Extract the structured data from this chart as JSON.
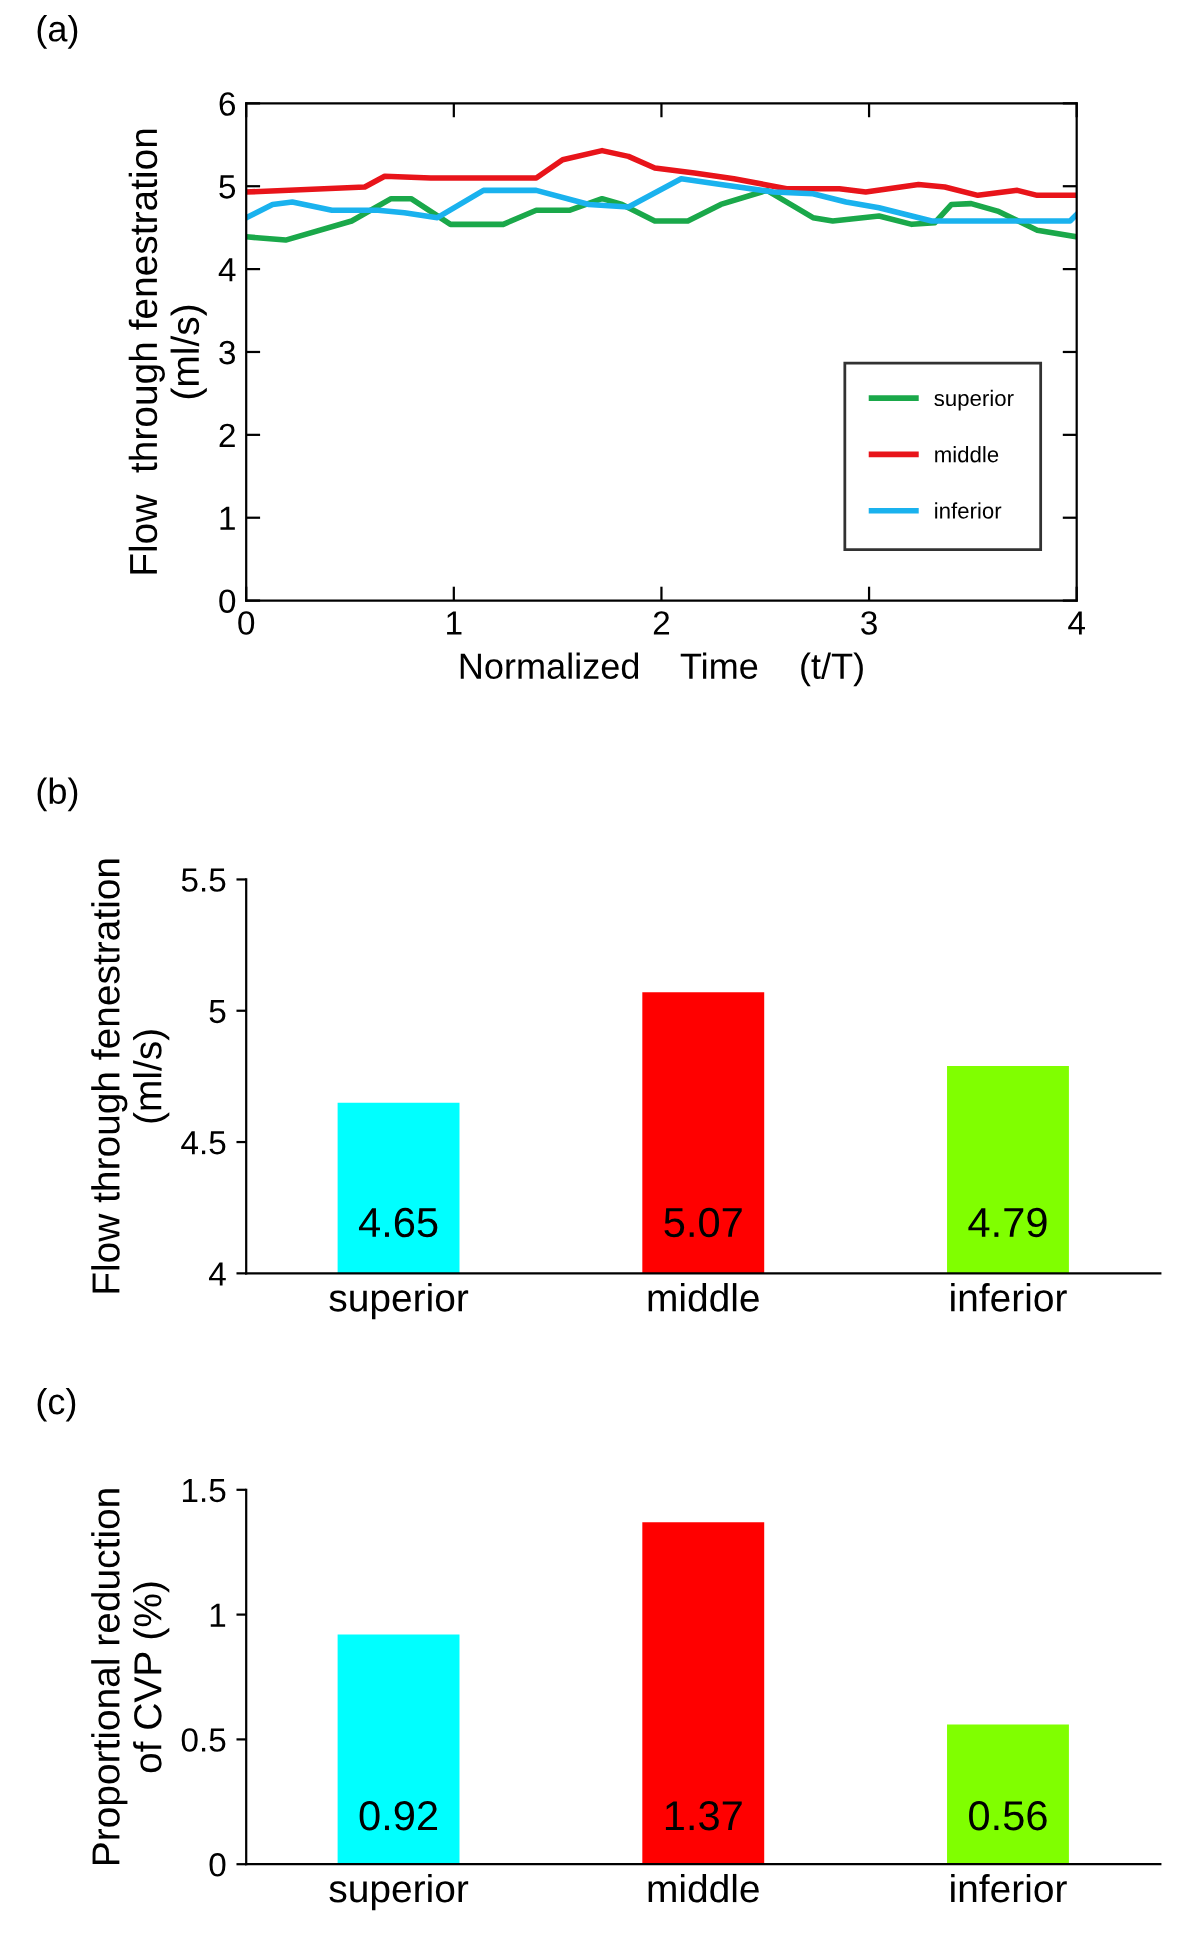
{
  "chart_data": [
    {
      "type": "line",
      "title": "(a)",
      "xlabel": "Normalized    Time    (t/T)",
      "ylabel": "Flow  through fenestration\n(ml/s)",
      "xlim": [
        0,
        4
      ],
      "xticks": [
        0,
        1,
        2,
        3,
        4
      ],
      "ylim": [
        0,
        6
      ],
      "yticks": [
        0,
        1,
        2,
        3,
        4,
        5,
        6
      ],
      "legend": "bottom right",
      "grid": false,
      "series": [
        {
          "name": "superior",
          "color": "#1aa84a",
          "x": [
            0,
            0.19,
            0.508,
            0.698,
            0.794,
            0.984,
            1.238,
            1.397,
            1.556,
            1.714,
            1.81,
            1.968,
            2.127,
            2.286,
            2.508,
            2.73,
            2.825,
            3.048,
            3.206,
            3.317,
            3.397,
            3.492,
            3.619,
            3.81,
            4
          ],
          "values": [
            4.39,
            4.35,
            4.58,
            4.85,
            4.85,
            4.54,
            4.54,
            4.71,
            4.71,
            4.85,
            4.78,
            4.58,
            4.58,
            4.78,
            4.95,
            4.62,
            4.58,
            4.64,
            4.54,
            4.56,
            4.78,
            4.79,
            4.7,
            4.47,
            4.39
          ]
        },
        {
          "name": "middle",
          "color": "#e8141a",
          "x": [
            0,
            0.571,
            0.667,
            0.889,
            1.397,
            1.524,
            1.714,
            1.841,
            1.968,
            2.159,
            2.349,
            2.603,
            2.857,
            2.984,
            3.238,
            3.365,
            3.524,
            3.714,
            3.81,
            4
          ],
          "values": [
            4.93,
            4.99,
            5.12,
            5.1,
            5.1,
            5.32,
            5.43,
            5.36,
            5.22,
            5.16,
            5.09,
            4.97,
            4.97,
            4.93,
            5.02,
            4.99,
            4.89,
            4.95,
            4.89,
            4.89
          ]
        },
        {
          "name": "inferior",
          "color": "#1ab2ee",
          "x": [
            0,
            0.127,
            0.222,
            0.413,
            0.635,
            0.762,
            0.921,
            1.143,
            1.397,
            1.651,
            1.841,
            2.095,
            2.286,
            2.54,
            2.73,
            2.889,
            3.048,
            3.302,
            3.968,
            4
          ],
          "values": [
            4.62,
            4.78,
            4.81,
            4.71,
            4.71,
            4.68,
            4.62,
            4.95,
            4.95,
            4.78,
            4.75,
            5.09,
            5.02,
            4.93,
            4.91,
            4.81,
            4.74,
            4.58,
            4.58,
            4.66
          ]
        }
      ]
    },
    {
      "type": "bar",
      "title": "(b)",
      "ylabel": "Flow through fenestration\n(ml/s)",
      "categories": [
        "superior",
        "middle",
        "inferior"
      ],
      "values": [
        4.65,
        5.07,
        4.79
      ],
      "colors": [
        "#00ffff",
        "#ff0000",
        "#80ff00"
      ],
      "ylim": [
        4,
        5.5
      ],
      "yticks": [
        4,
        4.5,
        5,
        5.5
      ],
      "data_labels": true
    },
    {
      "type": "bar",
      "title": "(c)",
      "ylabel": "Proportional reduction\nof CVP (%)",
      "categories": [
        "superior",
        "middle",
        "inferior"
      ],
      "values": [
        0.92,
        1.37,
        0.56
      ],
      "colors": [
        "#00ffff",
        "#ff0000",
        "#80ff00"
      ],
      "ylim": [
        0,
        1.5
      ],
      "yticks": [
        0,
        0.5,
        1,
        1.5
      ],
      "data_labels": true
    }
  ]
}
